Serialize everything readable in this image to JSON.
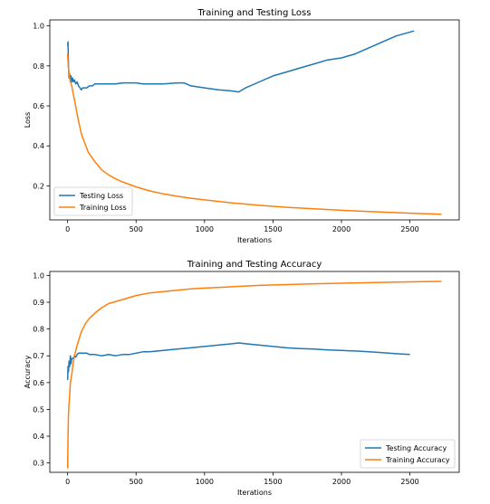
{
  "chart_data": [
    {
      "type": "line",
      "title": "Training and Testing Loss",
      "xlabel": "Iterations",
      "ylabel": "Loss",
      "xlim": [
        -130,
        2860
      ],
      "ylim": [
        0.03,
        1.03
      ],
      "xticks": [
        0,
        500,
        1000,
        1500,
        2000,
        2500
      ],
      "yticks": [
        0.2,
        0.4,
        0.6,
        0.8,
        1.0
      ],
      "ytick_labels": [
        "0.2",
        "0.4",
        "0.6",
        "0.8",
        "1.0"
      ],
      "grid": false,
      "legend": "lower-left",
      "series": [
        {
          "name": "Testing Loss",
          "color": "#1f77b4",
          "x": [
            0,
            3,
            6,
            10,
            14,
            18,
            24,
            30,
            36,
            42,
            50,
            60,
            70,
            80,
            90,
            100,
            110,
            120,
            140,
            160,
            180,
            200,
            220,
            250,
            300,
            350,
            400,
            450,
            500,
            550,
            600,
            700,
            800,
            850,
            900,
            1000,
            1100,
            1200,
            1250,
            1300,
            1400,
            1500,
            1600,
            1700,
            1800,
            1900,
            2000,
            2100,
            2200,
            2300,
            2400,
            2530
          ],
          "y": [
            0.9,
            0.92,
            0.8,
            0.74,
            0.76,
            0.73,
            0.75,
            0.72,
            0.74,
            0.72,
            0.73,
            0.71,
            0.72,
            0.7,
            0.69,
            0.68,
            0.69,
            0.69,
            0.69,
            0.7,
            0.7,
            0.71,
            0.71,
            0.71,
            0.71,
            0.71,
            0.715,
            0.715,
            0.715,
            0.71,
            0.71,
            0.71,
            0.715,
            0.715,
            0.7,
            0.69,
            0.68,
            0.675,
            0.67,
            0.69,
            0.72,
            0.75,
            0.77,
            0.79,
            0.81,
            0.83,
            0.84,
            0.86,
            0.89,
            0.92,
            0.95,
            0.975
          ]
        },
        {
          "name": "Training Loss",
          "color": "#ff7f0e",
          "x": [
            0,
            5,
            10,
            20,
            30,
            50,
            75,
            100,
            150,
            200,
            250,
            300,
            350,
            400,
            500,
            600,
            700,
            800,
            900,
            1000,
            1200,
            1400,
            1600,
            1800,
            2000,
            2200,
            2400,
            2600,
            2730
          ],
          "y": [
            0.86,
            0.8,
            0.76,
            0.72,
            0.7,
            0.63,
            0.54,
            0.46,
            0.37,
            0.32,
            0.28,
            0.255,
            0.235,
            0.22,
            0.195,
            0.175,
            0.16,
            0.148,
            0.138,
            0.13,
            0.115,
            0.103,
            0.093,
            0.085,
            0.078,
            0.072,
            0.066,
            0.061,
            0.058
          ]
        }
      ]
    },
    {
      "type": "line",
      "title": "Training and Testing Accuracy",
      "xlabel": "Iterations",
      "ylabel": "Accuracy",
      "xlim": [
        -130,
        2860
      ],
      "ylim": [
        0.265,
        1.015
      ],
      "xticks": [
        0,
        500,
        1000,
        1500,
        2000,
        2500
      ],
      "yticks": [
        0.3,
        0.4,
        0.5,
        0.6,
        0.7,
        0.8,
        0.9,
        1.0
      ],
      "ytick_labels": [
        "0.3",
        "0.4",
        "0.5",
        "0.6",
        "0.7",
        "0.8",
        "0.9",
        "1.0"
      ],
      "grid": false,
      "legend": "lower-right",
      "series": [
        {
          "name": "Testing Accuracy",
          "color": "#1f77b4",
          "x": [
            0,
            3,
            6,
            10,
            15,
            20,
            25,
            30,
            40,
            50,
            60,
            70,
            80,
            100,
            120,
            140,
            160,
            200,
            250,
            300,
            350,
            400,
            450,
            500,
            550,
            600,
            700,
            800,
            900,
            1000,
            1100,
            1200,
            1250,
            1300,
            1400,
            1500,
            1600,
            1700,
            1800,
            1900,
            2000,
            2100,
            2200,
            2300,
            2400,
            2500
          ],
          "y": [
            0.61,
            0.66,
            0.64,
            0.68,
            0.66,
            0.7,
            0.67,
            0.69,
            0.69,
            0.7,
            0.695,
            0.705,
            0.71,
            0.71,
            0.71,
            0.71,
            0.705,
            0.705,
            0.7,
            0.705,
            0.7,
            0.705,
            0.705,
            0.71,
            0.715,
            0.715,
            0.72,
            0.725,
            0.73,
            0.735,
            0.74,
            0.745,
            0.748,
            0.745,
            0.74,
            0.735,
            0.73,
            0.727,
            0.725,
            0.722,
            0.72,
            0.718,
            0.715,
            0.712,
            0.708,
            0.705
          ]
        },
        {
          "name": "Training Accuracy",
          "color": "#ff7f0e",
          "x": [
            0,
            3,
            6,
            10,
            15,
            20,
            30,
            40,
            50,
            70,
            100,
            130,
            160,
            200,
            250,
            300,
            400,
            500,
            600,
            700,
            800,
            900,
            1000,
            1200,
            1400,
            1600,
            1800,
            2000,
            2200,
            2400,
            2600,
            2730
          ],
          "y": [
            0.28,
            0.4,
            0.48,
            0.52,
            0.55,
            0.6,
            0.63,
            0.67,
            0.7,
            0.74,
            0.79,
            0.82,
            0.84,
            0.86,
            0.88,
            0.895,
            0.91,
            0.925,
            0.935,
            0.94,
            0.945,
            0.95,
            0.953,
            0.958,
            0.963,
            0.966,
            0.969,
            0.971,
            0.973,
            0.975,
            0.977,
            0.978
          ]
        }
      ]
    }
  ]
}
